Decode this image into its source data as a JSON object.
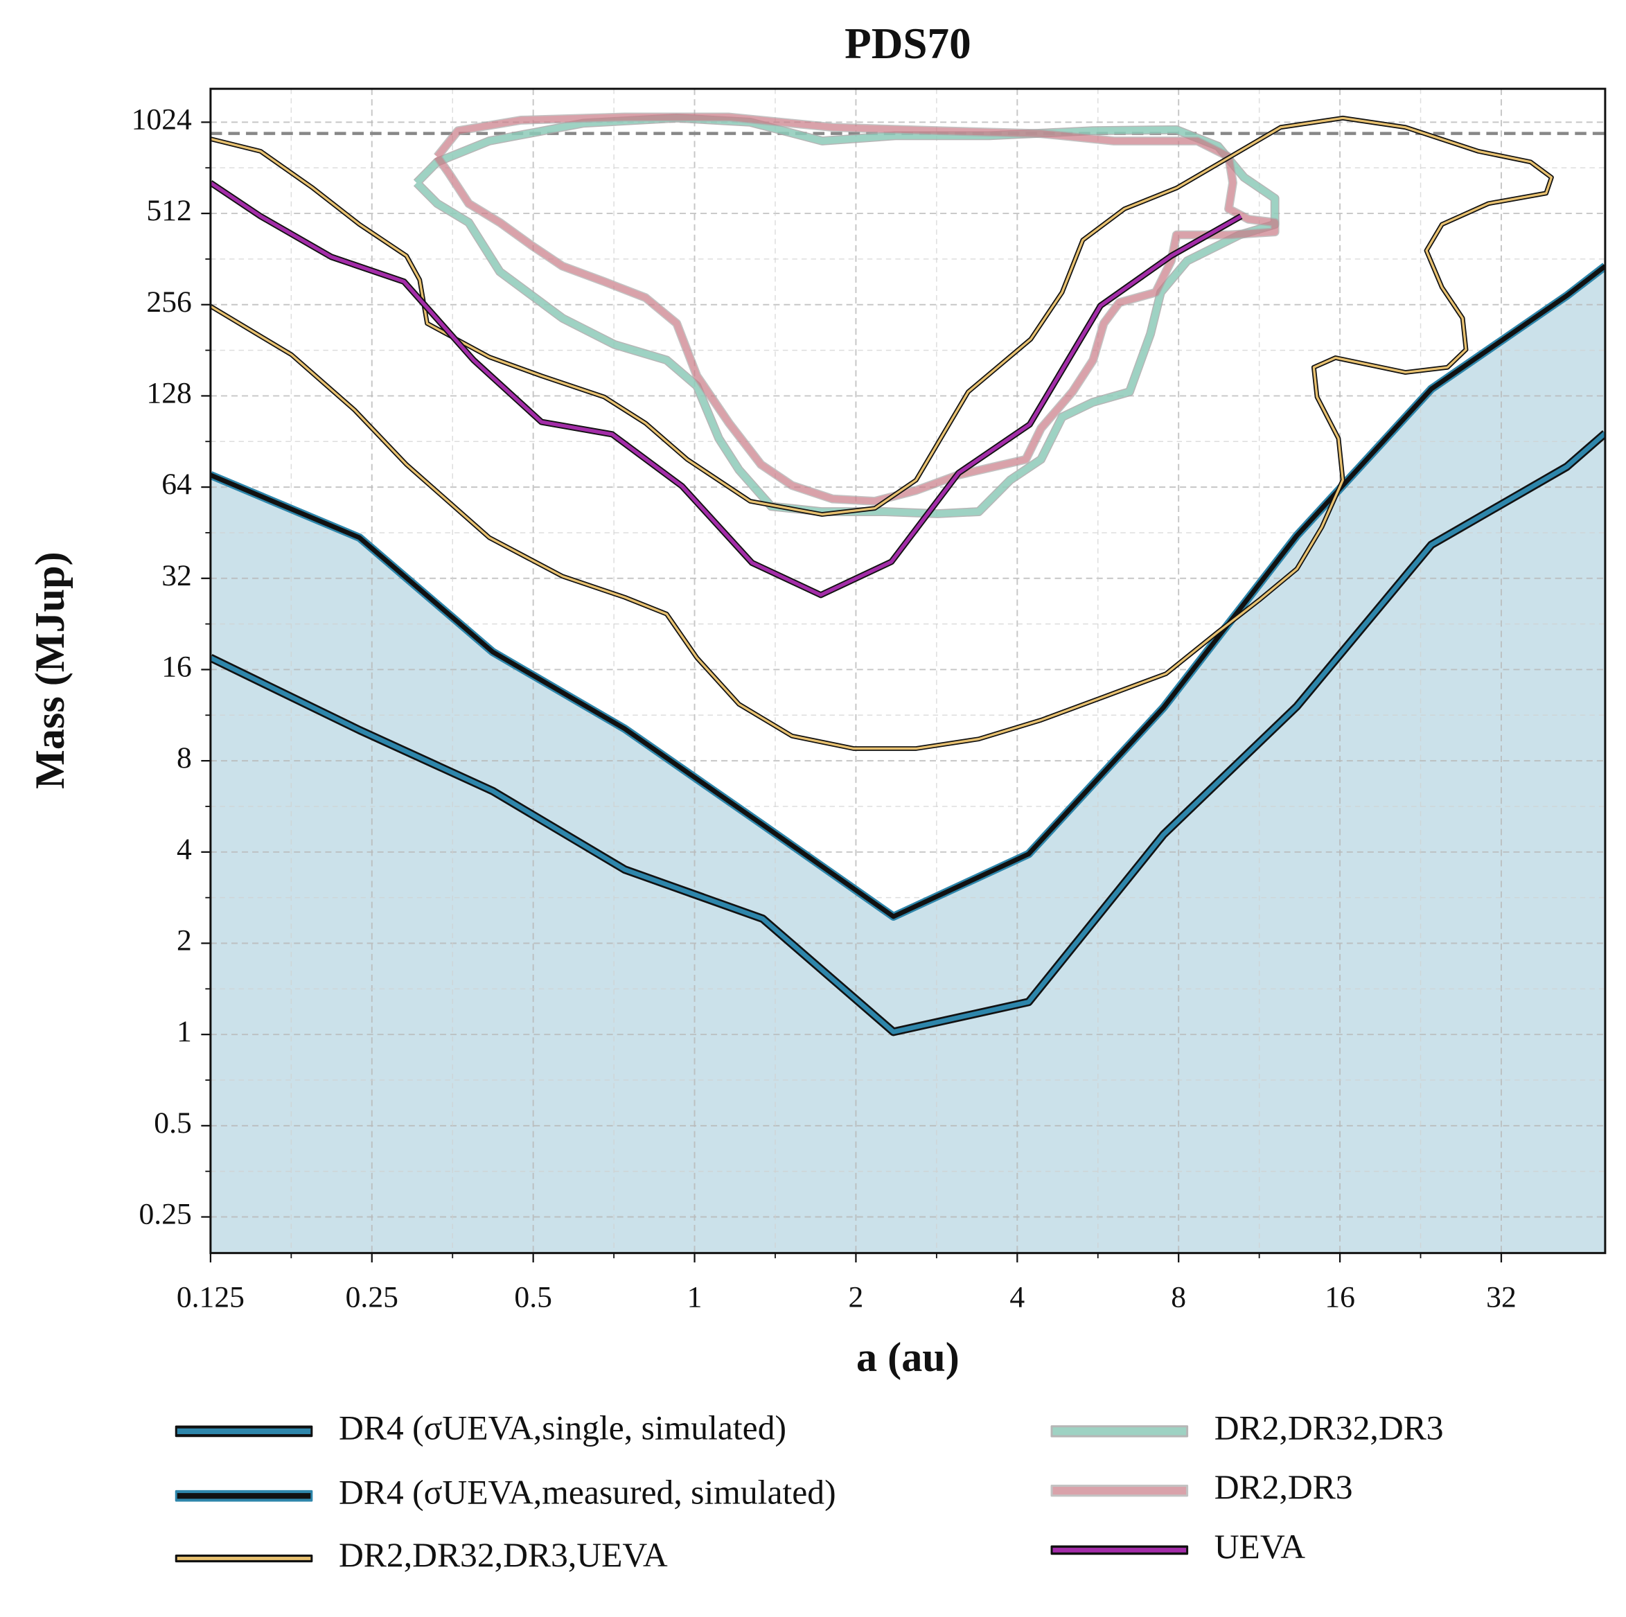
{
  "chart_data": {
    "type": "line",
    "title": "PDS70",
    "x_label": "a (au)",
    "y_label": "Mass (MJup)",
    "x_scale": "log",
    "y_scale": "log",
    "xlim": [
      0.125,
      50
    ],
    "ylim": [
      0.19,
      1320
    ],
    "xticks": [
      0.125,
      0.25,
      0.5,
      1,
      2,
      4,
      8,
      16,
      32
    ],
    "yticks": [
      0.25,
      0.5,
      1,
      2,
      4,
      8,
      16,
      32,
      64,
      128,
      256,
      512,
      1024
    ],
    "grid": true,
    "minor_grid": true,
    "hline": 940,
    "hline_color": "#888888",
    "legend": "lower center",
    "series": [
      {
        "name": "DR4 (σUEVA,single, simulated)",
        "color": "#2e86ab",
        "edge": "#111111",
        "fill_color": "#a6cadb",
        "x": [
          0.125,
          0.237,
          0.42,
          0.741,
          1.34,
          2.35,
          4.2,
          7.5,
          13.3,
          23.7,
          42.4,
          50
        ],
        "values": [
          17.5,
          10.1,
          6.36,
          3.5,
          2.41,
          1.02,
          1.28,
          4.57,
          12.1,
          41.3,
          74.7,
          96.3
        ]
      },
      {
        "name": "DR4 (σUEVA,measured, simulated)",
        "color": "#111111",
        "edge": "#2e86ab",
        "fill_color": "#cbe1ea",
        "x": [
          0.125,
          0.237,
          0.42,
          0.741,
          1.34,
          2.35,
          4.2,
          7.5,
          13.3,
          23.7,
          42.4,
          50
        ],
        "values": [
          70.1,
          43.6,
          18.3,
          10.2,
          4.92,
          2.45,
          3.94,
          12.0,
          44.3,
          135,
          274,
          343
        ]
      },
      {
        "name": "DR2,DR32,DR3,UEVA",
        "color": "#e8c170",
        "edge": "#111111",
        "x": [
          0.125,
          0.155,
          0.194,
          0.237,
          0.29,
          0.307,
          0.317,
          0.414,
          0.518,
          0.678,
          0.81,
          0.969,
          1.27,
          1.73,
          2.17,
          2.59,
          3.24,
          4.24,
          4.85,
          5.3,
          6.34,
          7.93,
          10.4,
          12.4,
          16.2,
          21.2,
          29,
          36.3,
          39.7,
          38.8,
          30.3,
          24.8,
          23.2,
          24.8,
          27.1,
          27.5,
          25.4,
          21.2,
          15.7,
          14.3,
          14.5,
          15.9,
          16.2,
          14.8,
          13.3,
          11.3,
          9.48,
          7.58,
          5.8,
          4.43,
          3.39,
          2.59,
          1.98,
          1.52,
          1.21,
          1.01,
          0.887,
          0.741,
          0.567,
          0.414,
          0.29,
          0.232,
          0.177,
          0.125
        ],
        "values": [
          902,
          821,
          621,
          471,
          371,
          309,
          222,
          172,
          149,
          127,
          104,
          79,
          57.5,
          52,
          54.5,
          67.5,
          132,
          197,
          281,
          418,
          530,
          621,
          821,
          985,
          1057,
          985,
          821,
          757,
          673,
          597,
          552,
          471,
          386,
          292,
          231,
          182,
          159,
          153,
          171,
          159,
          127,
          92.6,
          67.5,
          47.2,
          34.4,
          27.1,
          21.3,
          15.5,
          13,
          10.9,
          9.44,
          8.78,
          8.78,
          9.66,
          12.3,
          17.5,
          24.4,
          27.7,
          32.5,
          43.6,
          76,
          115,
          175,
          253
        ]
      },
      {
        "name": "DR2,DR32,DR3",
        "color": "#8ecbb9",
        "edge": "#aaaaaa",
        "x": [
          0.303,
          0.331,
          0.414,
          0.62,
          0.926,
          1.27,
          1.73,
          2.37,
          3.55,
          5.54,
          7.93,
          9.48,
          10.6,
          12.1,
          12.1,
          10.4,
          8.3,
          7.41,
          7.09,
          6.48,
          5.54,
          4.85,
          4.43,
          3.88,
          3.39,
          2.84,
          2.27,
          1.73,
          1.39,
          1.21,
          1.11,
          1.01,
          0.887,
          0.709,
          0.567,
          0.433,
          0.379,
          0.331,
          0.303
        ],
        "values": [
          646,
          757,
          888,
          1016,
          1057,
          1024,
          888,
          924,
          924,
          960,
          967,
          853,
          673,
          574,
          471,
          435,
          357,
          281,
          205,
          132,
          122,
          109,
          79,
          67.5,
          53.1,
          52.3,
          53.1,
          53.1,
          55.3,
          73,
          92.6,
          138,
          168,
          189,
          231,
          329,
          478,
          552,
          646
        ]
      },
      {
        "name": "DR2,DR3",
        "color": "#c97b87",
        "edge": "#aaaaaa",
        "x": [
          0.331,
          0.362,
          0.474,
          0.741,
          1.16,
          1.81,
          2.84,
          4.43,
          6.06,
          8.67,
          9.92,
          10.1,
          9.92,
          10.8,
          12.1,
          12.1,
          9.92,
          7.93,
          7.75,
          7.25,
          6.2,
          5.8,
          5.54,
          5.07,
          4.43,
          4.15,
          3.1,
          2.59,
          2.17,
          1.81,
          1.52,
          1.33,
          1.16,
          1.01,
          0.926,
          0.81,
          0.678,
          0.567,
          0.496,
          0.433,
          0.379,
          0.347,
          0.331
        ],
        "values": [
          788,
          960,
          1040,
          1065,
          1065,
          985,
          960,
          939,
          888,
          888,
          788,
          646,
          530,
          490,
          478,
          445,
          435,
          435,
          357,
          281,
          260,
          222,
          168,
          132,
          100,
          79,
          70.1,
          62.4,
          57.5,
          58.5,
          64.8,
          76,
          104,
          149,
          222,
          270,
          305,
          343,
          402,
          478,
          552,
          700,
          788
        ]
      },
      {
        "name": "UEVA",
        "color": "#a32ca8",
        "edge": "#111111",
        "x": [
          0.125,
          0.155,
          0.21,
          0.287,
          0.387,
          0.518,
          0.702,
          0.948,
          1.28,
          1.72,
          2.33,
          3.11,
          4.22,
          5.72,
          7.75,
          10.46
        ],
        "values": [
          646,
          501,
          368,
          305,
          168,
          105,
          95.6,
          64.4,
          36.0,
          28.2,
          36.3,
          71.3,
          103,
          254,
          371,
          501
        ]
      }
    ]
  }
}
